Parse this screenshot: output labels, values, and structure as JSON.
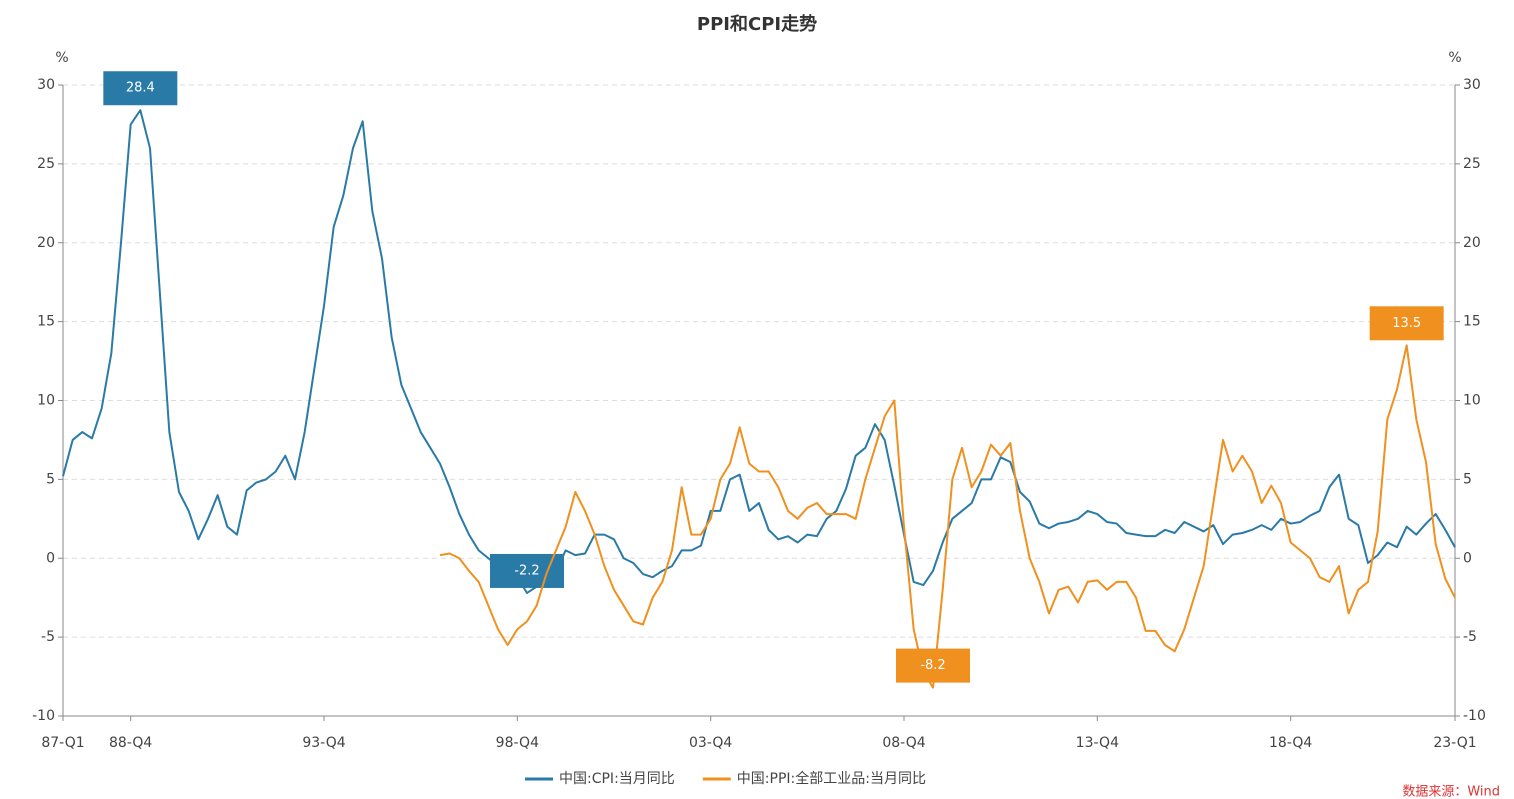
{
  "chart_data": {
    "type": "line",
    "title": "PPI和CPI走势",
    "ylabel": "%",
    "y2label": "%",
    "categories": [
      "87-Q1",
      null,
      null,
      null,
      null,
      null,
      null,
      "88-Q4",
      null,
      null,
      null,
      null,
      null,
      null,
      null,
      null,
      null,
      null,
      null,
      null,
      null,
      null,
      null,
      null,
      null,
      null,
      null,
      "93-Q4",
      null,
      null,
      null,
      null,
      null,
      null,
      null,
      null,
      null,
      null,
      null,
      null,
      null,
      null,
      null,
      null,
      null,
      null,
      null,
      "98-Q4",
      null,
      null,
      null,
      null,
      null,
      null,
      null,
      null,
      null,
      null,
      null,
      null,
      null,
      null,
      null,
      null,
      null,
      null,
      null,
      "03-Q4",
      null,
      null,
      null,
      null,
      null,
      null,
      null,
      null,
      null,
      null,
      null,
      null,
      null,
      null,
      null,
      null,
      null,
      null,
      null,
      "08-Q4",
      null,
      null,
      null,
      null,
      null,
      null,
      null,
      null,
      null,
      null,
      null,
      null,
      null,
      null,
      null,
      null,
      null,
      null,
      null,
      "13-Q4",
      null,
      null,
      null,
      null,
      null,
      null,
      null,
      null,
      null,
      null,
      null,
      null,
      null,
      null,
      null,
      null,
      null,
      null,
      null,
      "18-Q4",
      null,
      null,
      null,
      null,
      null,
      null,
      null,
      null,
      null,
      null,
      null,
      null,
      null,
      null,
      null,
      null,
      "23-Q1"
    ],
    "series": [
      {
        "name": "中国:CPI:当月同比",
        "color": "#2a7aa8",
        "values": [
          5.2,
          7.5,
          8,
          7.6,
          9.5,
          13,
          20,
          27.5,
          28.4,
          26,
          17,
          8,
          4.2,
          3,
          1.2,
          2.5,
          4,
          2,
          1.5,
          4.3,
          4.8,
          5,
          5.5,
          6.5,
          5,
          8,
          12,
          16,
          21,
          23,
          26,
          27.7,
          22,
          19,
          14,
          11,
          9.5,
          8,
          7,
          6,
          4.5,
          2.8,
          1.5,
          0.5,
          0,
          -0.5,
          -1.5,
          -1.2,
          -2.2,
          -1.8,
          -1,
          -0.8,
          0.5,
          0.2,
          0.3,
          1.5,
          1.5,
          1.2,
          0,
          -0.3,
          -1,
          -1.2,
          -0.8,
          -0.5,
          0.5,
          0.5,
          0.8,
          3,
          3,
          5,
          5.3,
          3,
          3.5,
          1.8,
          1.2,
          1.4,
          1,
          1.5,
          1.4,
          2.5,
          3,
          4.4,
          6.5,
          7,
          8.5,
          7.5,
          4.6,
          1.5,
          -1.5,
          -1.7,
          -0.8,
          1,
          2.5,
          3,
          3.5,
          5,
          5,
          6.4,
          6.1,
          4.2,
          3.6,
          2.2,
          1.9,
          2.2,
          2.3,
          2.5,
          3,
          2.8,
          2.3,
          2.2,
          1.6,
          1.5,
          1.4,
          1.4,
          1.8,
          1.6,
          2.3,
          2,
          1.7,
          2.1,
          0.9,
          1.5,
          1.6,
          1.8,
          2.1,
          1.8,
          2.5,
          2.2,
          2.3,
          2.7,
          3,
          4.5,
          5.3,
          2.5,
          2.1,
          -0.3,
          0.2,
          1,
          0.7,
          2,
          1.5,
          2.2,
          2.8,
          1.8,
          0.7
        ]
      },
      {
        "name": "中国:PPI:全部工业品:当月同比",
        "color": "#f0901e",
        "axis": "y2",
        "values": [
          null,
          null,
          null,
          null,
          null,
          null,
          null,
          null,
          null,
          null,
          null,
          null,
          null,
          null,
          null,
          null,
          null,
          null,
          null,
          null,
          null,
          null,
          null,
          null,
          null,
          null,
          null,
          null,
          null,
          null,
          null,
          null,
          null,
          null,
          null,
          null,
          null,
          null,
          null,
          0.2,
          0.3,
          0,
          -0.8,
          -1.5,
          -3,
          -4.5,
          -5.5,
          -4.5,
          -4,
          -3,
          -1,
          0.5,
          2,
          4.2,
          3,
          1.5,
          -0.5,
          -2,
          -3,
          -4,
          -4.2,
          -2.5,
          -1.5,
          0.5,
          4.5,
          1.5,
          1.5,
          2.5,
          5,
          6,
          8.3,
          6,
          5.5,
          5.5,
          4.5,
          3,
          2.5,
          3.2,
          3.5,
          2.8,
          2.8,
          2.8,
          2.5,
          5,
          7,
          9,
          10,
          2,
          -4.5,
          -7.2,
          -8.2,
          -2,
          5,
          7,
          4.5,
          5.5,
          7.2,
          6.5,
          7.3,
          3,
          0,
          -1.5,
          -3.5,
          -2,
          -1.8,
          -2.8,
          -1.5,
          -1.4,
          -2,
          -1.5,
          -1.5,
          -2.5,
          -4.6,
          -4.6,
          -5.5,
          -5.9,
          -4.5,
          -2.5,
          -0.5,
          3.5,
          7.5,
          5.5,
          6.5,
          5.5,
          3.5,
          4.6,
          3.5,
          1,
          0.5,
          0,
          -1.2,
          -1.5,
          -0.5,
          -3.5,
          -2,
          -1.5,
          1.7,
          8.8,
          10.7,
          13.5,
          8.8,
          6.1,
          0.9,
          -1.3,
          -2.5
        ]
      }
    ],
    "ylim": [
      -10,
      30
    ],
    "yticks": [
      -10,
      -5,
      0,
      5,
      10,
      15,
      20,
      25,
      30
    ],
    "y2lim": [
      -10,
      30
    ],
    "y2ticks": [
      -10,
      -5,
      0,
      5,
      10,
      15,
      20,
      25,
      30
    ],
    "grid": true,
    "legend": "bottom",
    "source": "数据来源：Wind"
  }
}
